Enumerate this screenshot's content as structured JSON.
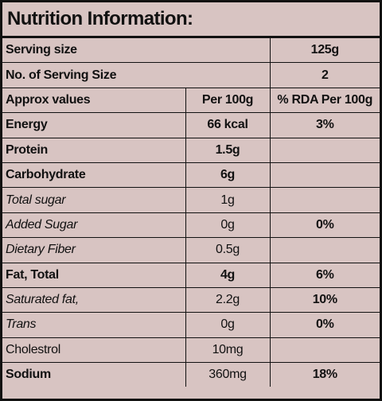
{
  "title": "Nutrition Information:",
  "rows": [
    [
      "Serving size",
      "125g"
    ],
    [
      "No. of Serving Size",
      "2"
    ],
    [
      "Approx values",
      "Per 100g",
      "% RDA Per 100g"
    ],
    [
      "Energy",
      "66 kcal",
      "3%"
    ],
    [
      "Protein",
      "1.5g"
    ],
    [
      "Carbohydrate",
      "6g"
    ],
    [
      "Total sugar",
      "1g"
    ],
    [
      "Added Sugar",
      "0g",
      "0%"
    ],
    [
      "Dietary Fiber",
      "0.5g"
    ],
    [
      "Fat, Total",
      "4g",
      "6%"
    ],
    [
      "Saturated fat,",
      "2.2g",
      "10%"
    ],
    [
      "Trans",
      "0g",
      "0%"
    ],
    [
      "Cholestrol",
      "10mg"
    ],
    [
      "Sodium",
      "360mg",
      "18%"
    ]
  ]
}
